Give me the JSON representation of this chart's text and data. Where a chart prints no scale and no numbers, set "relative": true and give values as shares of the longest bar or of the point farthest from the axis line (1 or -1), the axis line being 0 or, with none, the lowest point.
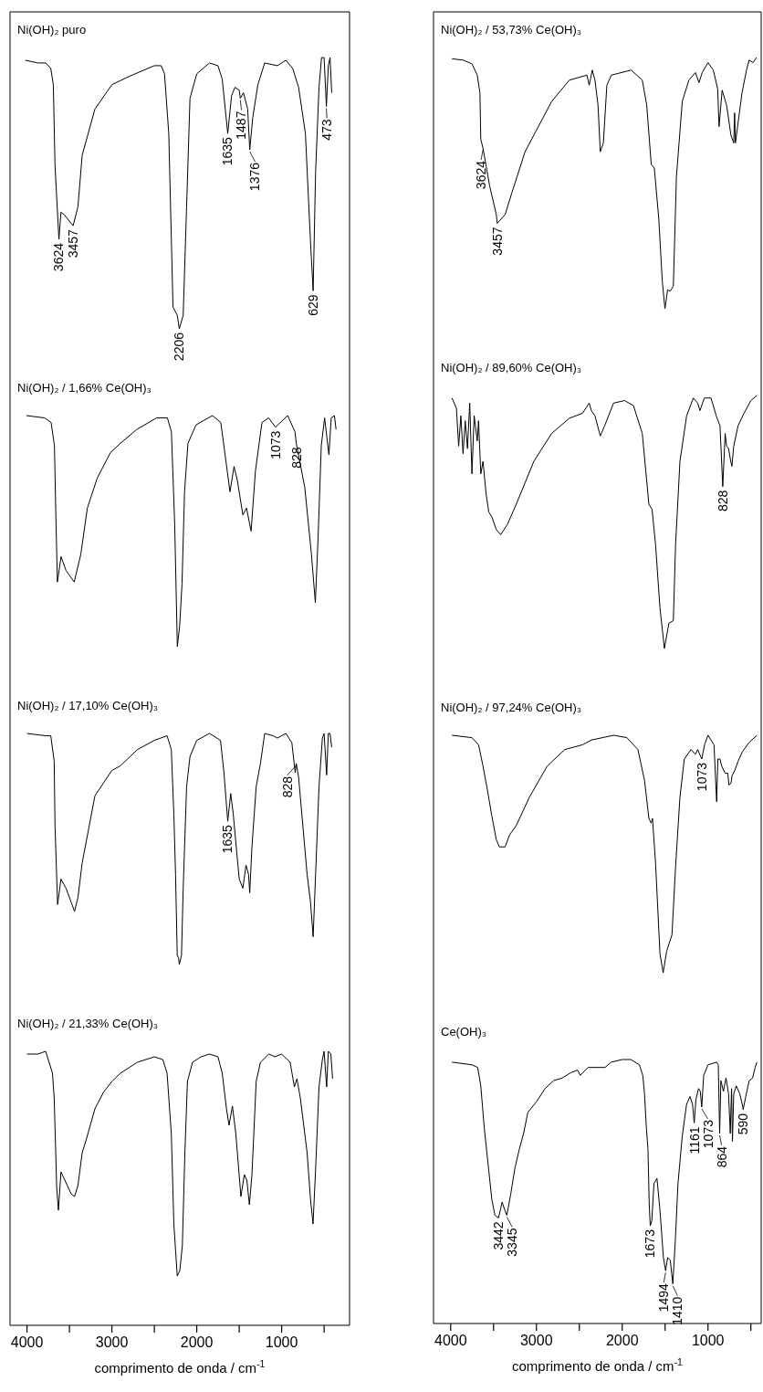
{
  "chart_data": [
    {
      "type": "line",
      "title": "Ni(OH)₂ puro",
      "relative": true,
      "xlim": [
        4200,
        200
      ],
      "tick_labels": false,
      "series": [
        {
          "color": "#000000",
          "x": [
            4020,
            3870,
            3780,
            3720,
            3690,
            3670,
            3624,
            3600,
            3560,
            3457,
            3400,
            3350,
            3200,
            3000,
            2800,
            2500,
            2420,
            2380,
            2330,
            2280,
            2230,
            2206,
            2160,
            2120,
            2080,
            2000,
            1850,
            1750,
            1700,
            1635,
            1590,
            1550,
            1500,
            1487,
            1450,
            1400,
            1376,
            1340,
            1280,
            1200,
            1050,
            950,
            870,
            800,
            720,
            660,
            629,
            600,
            560,
            530,
            500,
            473,
            450,
            430,
            410
          ],
          "values": [
            0.99,
            0.98,
            0.98,
            0.96,
            0.9,
            0.6,
            0.33,
            0.43,
            0.42,
            0.38,
            0.45,
            0.64,
            0.81,
            0.9,
            0.93,
            0.97,
            0.97,
            0.94,
            0.72,
            0.08,
            0.05,
            0.0,
            0.05,
            0.45,
            0.85,
            0.94,
            0.98,
            0.97,
            0.92,
            0.72,
            0.86,
            0.89,
            0.88,
            0.85,
            0.87,
            0.81,
            0.66,
            0.78,
            0.9,
            0.98,
            0.97,
            0.99,
            0.96,
            0.89,
            0.72,
            0.32,
            0.14,
            0.58,
            0.89,
            1.0,
            1.0,
            0.82,
            0.97,
            1.0,
            0.87
          ]
        }
      ],
      "annotations": [
        {
          "text": "3624",
          "x": 3624,
          "y": 0.33
        },
        {
          "text": "3457",
          "x": 3457,
          "y": 0.38
        },
        {
          "text": "2206",
          "x": 2206,
          "y": 0.0
        },
        {
          "text": "1635",
          "x": 1635,
          "y": 0.72
        },
        {
          "text": "1487",
          "x": 1487,
          "y": 0.85
        },
        {
          "text": "1376",
          "x": 1376,
          "y": 0.66
        },
        {
          "text": "629",
          "x": 629,
          "y": 0.14
        },
        {
          "text": "473",
          "x": 473,
          "y": 0.82
        }
      ]
    },
    {
      "type": "line",
      "title": "Ni(OH)₂ / 1,66% Ce(OH)₃",
      "relative": true,
      "xlim": [
        4200,
        200
      ],
      "tick_labels": false,
      "series": [
        {
          "color": "#000000",
          "x": [
            4007,
            3793,
            3716,
            3677,
            3658,
            3642,
            3599,
            3541,
            3444,
            3366,
            3289,
            3172,
            3017,
            2900,
            2707,
            2474,
            2346,
            2299,
            2260,
            2229,
            2202,
            2174,
            2144,
            2104,
            2008,
            1815,
            1717,
            1659,
            1609,
            1561,
            1522,
            1457,
            1414,
            1360,
            1309,
            1232,
            1154,
            1073,
            929,
            843,
            828,
            728,
            649,
            603,
            571,
            533,
            494,
            443,
            416,
            378,
            359
          ],
          "values": [
            1.0,
            0.99,
            0.97,
            0.87,
            0.53,
            0.28,
            0.39,
            0.33,
            0.28,
            0.4,
            0.6,
            0.73,
            0.84,
            0.88,
            0.94,
            0.99,
            0.99,
            0.93,
            0.53,
            0.0,
            0.09,
            0.27,
            0.67,
            0.88,
            0.96,
            1.0,
            0.97,
            0.81,
            0.67,
            0.78,
            0.72,
            0.57,
            0.6,
            0.5,
            0.76,
            0.97,
            0.99,
            0.95,
            1.0,
            0.93,
            0.88,
            0.69,
            0.4,
            0.19,
            0.47,
            0.87,
            0.99,
            0.83,
            0.99,
            1.0,
            0.94
          ]
        }
      ],
      "annotations": [
        {
          "text": "1073",
          "x": 1073,
          "y": 0.95
        },
        {
          "text": "828",
          "x": 828,
          "y": 0.88
        }
      ]
    },
    {
      "type": "line",
      "title": "Ni(OH)₂ / 17,10% Ce(OH)₃",
      "relative": true,
      "xlim": [
        4200,
        200
      ],
      "tick_labels": false,
      "series": [
        {
          "color": "#000000",
          "x": [
            4000,
            3780,
            3720,
            3680,
            3670,
            3640,
            3600,
            3540,
            3480,
            3440,
            3400,
            3350,
            3200,
            3000,
            2900,
            2700,
            2500,
            2350,
            2300,
            2270,
            2250,
            2230,
            2215,
            2206,
            2180,
            2160,
            2120,
            2080,
            2000,
            1850,
            1720,
            1680,
            1635,
            1600,
            1570,
            1500,
            1457,
            1420,
            1390,
            1376,
            1350,
            1300,
            1250,
            1200,
            1100,
            1050,
            950,
            880,
            840,
            828,
            800,
            700,
            660,
            629,
            600,
            560,
            520,
            500,
            470,
            450,
            430,
            410
          ],
          "values": [
            1.0,
            0.99,
            0.99,
            0.88,
            0.6,
            0.26,
            0.37,
            0.33,
            0.27,
            0.23,
            0.29,
            0.44,
            0.73,
            0.84,
            0.86,
            0.93,
            0.97,
            0.99,
            0.93,
            0.65,
            0.39,
            0.04,
            0.03,
            0.0,
            0.04,
            0.33,
            0.77,
            0.9,
            0.97,
            1.0,
            0.97,
            0.83,
            0.62,
            0.74,
            0.65,
            0.37,
            0.33,
            0.43,
            0.39,
            0.31,
            0.51,
            0.77,
            0.87,
            1.0,
            0.99,
            0.98,
            1.0,
            0.96,
            0.83,
            0.87,
            0.81,
            0.39,
            0.27,
            0.12,
            0.39,
            0.77,
            0.98,
            1.0,
            0.82,
            1.0,
            1.0,
            0.94
          ]
        }
      ],
      "annotations": [
        {
          "text": "1635",
          "x": 1635,
          "y": 0.62
        },
        {
          "text": "828",
          "x": 828,
          "y": 0.87
        }
      ]
    },
    {
      "type": "line",
      "title": "Ni(OH)₂ / 21,33% Ce(OH)₃",
      "relative": true,
      "xlim": [
        4200,
        200
      ],
      "tick_labels": "x",
      "xlabel": "comprimento de onda / cm$^{-1}$",
      "xticks": [
        4000,
        {
          "value": 3500,
          "label": null
        },
        3000,
        {
          "value": 2500,
          "label": null
        },
        2000,
        {
          "value": 1500,
          "label": null
        },
        1000,
        {
          "value": 500,
          "label": null
        }
      ],
      "series": [
        {
          "color": "#000000",
          "x": [
            4000,
            3870,
            3780,
            3750,
            3700,
            3680,
            3650,
            3630,
            3600,
            3540,
            3480,
            3440,
            3400,
            3350,
            3300,
            3200,
            3100,
            3000,
            2900,
            2700,
            2500,
            2400,
            2350,
            2300,
            2270,
            2230,
            2200,
            2170,
            2140,
            2110,
            2050,
            1950,
            1850,
            1750,
            1700,
            1650,
            1620,
            1580,
            1540,
            1480,
            1440,
            1410,
            1380,
            1350,
            1300,
            1250,
            1150,
            1080,
            1000,
            900,
            850,
            820,
            780,
            700,
            660,
            630,
            600,
            560,
            520,
            500,
            470,
            450,
            420,
            400
          ],
          "values": [
            0.99,
            0.99,
            1.0,
            0.97,
            0.92,
            0.83,
            0.5,
            0.42,
            0.56,
            0.52,
            0.48,
            0.47,
            0.51,
            0.63,
            0.68,
            0.79,
            0.85,
            0.89,
            0.92,
            0.96,
            0.98,
            0.97,
            0.92,
            0.7,
            0.37,
            0.18,
            0.2,
            0.29,
            0.63,
            0.89,
            0.96,
            0.98,
            0.99,
            0.98,
            0.92,
            0.79,
            0.73,
            0.8,
            0.7,
            0.47,
            0.55,
            0.53,
            0.44,
            0.55,
            0.89,
            0.96,
            0.99,
            0.98,
            0.99,
            0.96,
            0.87,
            0.9,
            0.83,
            0.63,
            0.46,
            0.37,
            0.57,
            0.87,
            0.97,
            1.0,
            0.87,
            1.0,
            0.99,
            0.9
          ]
        }
      ]
    },
    {
      "type": "line",
      "title": "Ni(OH)₂ / 53,73% Ce(OH)₃",
      "relative": true,
      "xlim": [
        4200,
        380
      ],
      "tick_labels": false,
      "series": [
        {
          "color": "#000000",
          "x": [
            3985,
            3856,
            3752,
            3690,
            3659,
            3649,
            3624,
            3546,
            3468,
            3457,
            3365,
            3288,
            3133,
            2978,
            2823,
            2617,
            2411,
            2385,
            2349,
            2318,
            2282,
            2256,
            2220,
            2179,
            2127,
            1895,
            1766,
            1714,
            1662,
            1626,
            1574,
            1533,
            1502,
            1471,
            1440,
            1404,
            1368,
            1300,
            1223,
            1146,
            1105,
            1068,
            1000,
            938,
            887,
            871,
            835,
            783,
            732,
            700,
            690,
            680,
            603,
            551,
            520,
            474,
            433
          ],
          "values": [
            0.995,
            0.99,
            0.975,
            0.93,
            0.86,
            0.675,
            0.64,
            0.49,
            0.375,
            0.34,
            0.375,
            0.46,
            0.625,
            0.725,
            0.825,
            0.91,
            0.93,
            0.89,
            0.95,
            0.91,
            0.81,
            0.625,
            0.66,
            0.89,
            0.93,
            0.95,
            0.91,
            0.81,
            0.575,
            0.56,
            0.36,
            0.11,
            0.0,
            0.075,
            0.07,
            0.09,
            0.525,
            0.825,
            0.91,
            0.94,
            0.9,
            0.94,
            0.98,
            0.95,
            0.875,
            0.725,
            0.87,
            0.81,
            0.69,
            0.66,
            0.78,
            0.66,
            0.86,
            0.95,
            0.99,
            0.98,
            1.0
          ]
        }
      ],
      "annotations": [
        {
          "text": "3624",
          "x": 3624,
          "y": 0.64
        },
        {
          "text": "3457",
          "x": 3457,
          "y": 0.34
        }
      ]
    },
    {
      "type": "line",
      "title": "Ni(OH)₂ / 89,60% Ce(OH)₃",
      "relative": true,
      "xlim": [
        4200,
        380
      ],
      "tick_labels": false,
      "series": [
        {
          "color": "#000000",
          "x": [
            3985,
            3933,
            3907,
            3881,
            3856,
            3830,
            3804,
            3778,
            3752,
            3726,
            3690,
            3675,
            3649,
            3623,
            3587,
            3556,
            3520,
            3468,
            3417,
            3339,
            3236,
            3030,
            2823,
            2617,
            2462,
            2385,
            2359,
            2318,
            2256,
            2205,
            2101,
            1972,
            1869,
            1766,
            1689,
            1652,
            1611,
            1560,
            1508,
            1456,
            1404,
            1378,
            1327,
            1249,
            1171,
            1120,
            1094,
            1043,
            965,
            904,
            860,
            828,
            800,
            783,
            760,
            735,
            721,
            700,
            650,
            580,
            500,
            430
          ],
          "values": [
            0.99,
            0.95,
            0.8,
            0.92,
            0.77,
            0.9,
            0.79,
            0.97,
            0.69,
            0.92,
            0.82,
            0.9,
            0.69,
            0.74,
            0.61,
            0.54,
            0.52,
            0.47,
            0.45,
            0.49,
            0.57,
            0.74,
            0.85,
            0.91,
            0.93,
            0.97,
            0.94,
            0.92,
            0.84,
            0.88,
            0.97,
            0.98,
            0.96,
            0.85,
            0.57,
            0.55,
            0.41,
            0.16,
            0.0,
            0.1,
            0.11,
            0.41,
            0.74,
            0.92,
            0.99,
            0.97,
            0.94,
            0.99,
            0.99,
            0.92,
            0.88,
            0.64,
            0.85,
            0.8,
            0.79,
            0.74,
            0.72,
            0.8,
            0.88,
            0.93,
            0.98,
            1.0
          ]
        }
      ],
      "annotations": [
        {
          "text": "828",
          "x": 828,
          "y": 0.64
        }
      ]
    },
    {
      "type": "line",
      "title": "Ni(OH)₂ / 97,24% Ce(OH)₃",
      "relative": true,
      "xlim": [
        4200,
        380
      ],
      "tick_labels": false,
      "series": [
        {
          "color": "#000000",
          "x": [
            3985,
            3752,
            3675,
            3623,
            3572,
            3520,
            3468,
            3432,
            3365,
            3314,
            3236,
            3081,
            2875,
            2669,
            2462,
            2359,
            2101,
            1946,
            1817,
            1740,
            1689,
            1662,
            1647,
            1611,
            1560,
            1523,
            1482,
            1456,
            1420,
            1379,
            1327,
            1276,
            1198,
            1146,
            1120,
            1073,
            1040,
            1000,
            930,
            899,
            885,
            860,
            840,
            800,
            770,
            755,
            730,
            720,
            690,
            650,
            600,
            520,
            430
          ],
          "values": [
            1.0,
            0.99,
            0.96,
            0.87,
            0.77,
            0.66,
            0.56,
            0.53,
            0.53,
            0.58,
            0.62,
            0.74,
            0.87,
            0.94,
            0.96,
            0.98,
            1.0,
            0.99,
            0.94,
            0.81,
            0.65,
            0.63,
            0.65,
            0.46,
            0.08,
            0.0,
            0.09,
            0.12,
            0.16,
            0.44,
            0.74,
            0.9,
            0.94,
            0.92,
            0.94,
            0.9,
            0.96,
            1.0,
            0.96,
            0.72,
            0.9,
            0.9,
            0.87,
            0.84,
            0.84,
            0.79,
            0.8,
            0.83,
            0.85,
            0.89,
            0.93,
            0.97,
            1.0
          ]
        }
      ],
      "annotations": [
        {
          "text": "1073",
          "x": 1073,
          "y": 0.9
        }
      ]
    },
    {
      "type": "line",
      "title": "Ce(OH)₃",
      "relative": true,
      "xlim": [
        4200,
        380
      ],
      "tick_labels": "x",
      "xlabel": "comprimento de onda / cm$^{-1}$",
      "xticks": [
        4000,
        {
          "value": 3500,
          "label": null
        },
        3000,
        {
          "value": 2500,
          "label": null
        },
        2000,
        {
          "value": 1500,
          "label": null
        },
        1000,
        {
          "value": 500,
          "label": null
        }
      ],
      "series": [
        {
          "color": "#000000",
          "x": [
            3985,
            3752,
            3685,
            3649,
            3608,
            3556,
            3520,
            3484,
            3442,
            3400,
            3370,
            3345,
            3300,
            3250,
            3200,
            3150,
            3100,
            3000,
            2900,
            2800,
            2700,
            2600,
            2520,
            2490,
            2400,
            2200,
            2130,
            2000,
            1900,
            1800,
            1760,
            1740,
            1720,
            1700,
            1685,
            1673,
            1655,
            1630,
            1595,
            1560,
            1520,
            1494,
            1470,
            1440,
            1410,
            1380,
            1350,
            1300,
            1250,
            1210,
            1180,
            1161,
            1140,
            1110,
            1090,
            1073,
            1050,
            1000,
            900,
            880,
            864,
            850,
            820,
            790,
            760,
            740,
            725,
            715,
            700,
            670,
            630,
            600,
            590,
            560,
            520,
            480,
            450,
            430
          ],
          "values": [
            0.99,
            0.98,
            0.97,
            0.9,
            0.74,
            0.58,
            0.47,
            0.41,
            0.4,
            0.46,
            0.43,
            0.41,
            0.49,
            0.59,
            0.66,
            0.72,
            0.8,
            0.84,
            0.89,
            0.92,
            0.93,
            0.95,
            0.96,
            0.94,
            0.97,
            0.97,
            0.99,
            1.0,
            1.0,
            0.98,
            0.94,
            0.87,
            0.75,
            0.66,
            0.45,
            0.37,
            0.39,
            0.53,
            0.55,
            0.43,
            0.25,
            0.2,
            0.25,
            0.24,
            0.15,
            0.32,
            0.53,
            0.71,
            0.83,
            0.86,
            0.83,
            0.76,
            0.85,
            0.89,
            0.88,
            0.82,
            0.94,
            0.98,
            0.99,
            0.98,
            0.72,
            0.92,
            0.88,
            0.93,
            0.87,
            0.72,
            0.89,
            0.69,
            0.87,
            0.9,
            0.87,
            0.83,
            0.81,
            0.86,
            0.92,
            0.93,
            0.97,
            0.99
          ]
        }
      ],
      "annotations": [
        {
          "text": "3442",
          "x": 3442,
          "y": 0.4
        },
        {
          "text": "3345",
          "x": 3345,
          "y": 0.41
        },
        {
          "text": "1673",
          "x": 1673,
          "y": 0.37
        },
        {
          "text": "1494",
          "x": 1494,
          "y": 0.2
        },
        {
          "text": "1410",
          "x": 1410,
          "y": 0.15
        },
        {
          "text": "1161",
          "x": 1161,
          "y": 0.76
        },
        {
          "text": "1073",
          "x": 1073,
          "y": 0.82
        },
        {
          "text": "864",
          "x": 864,
          "y": 0.72
        },
        {
          "text": "590",
          "x": 590,
          "y": 0.81
        }
      ]
    }
  ]
}
